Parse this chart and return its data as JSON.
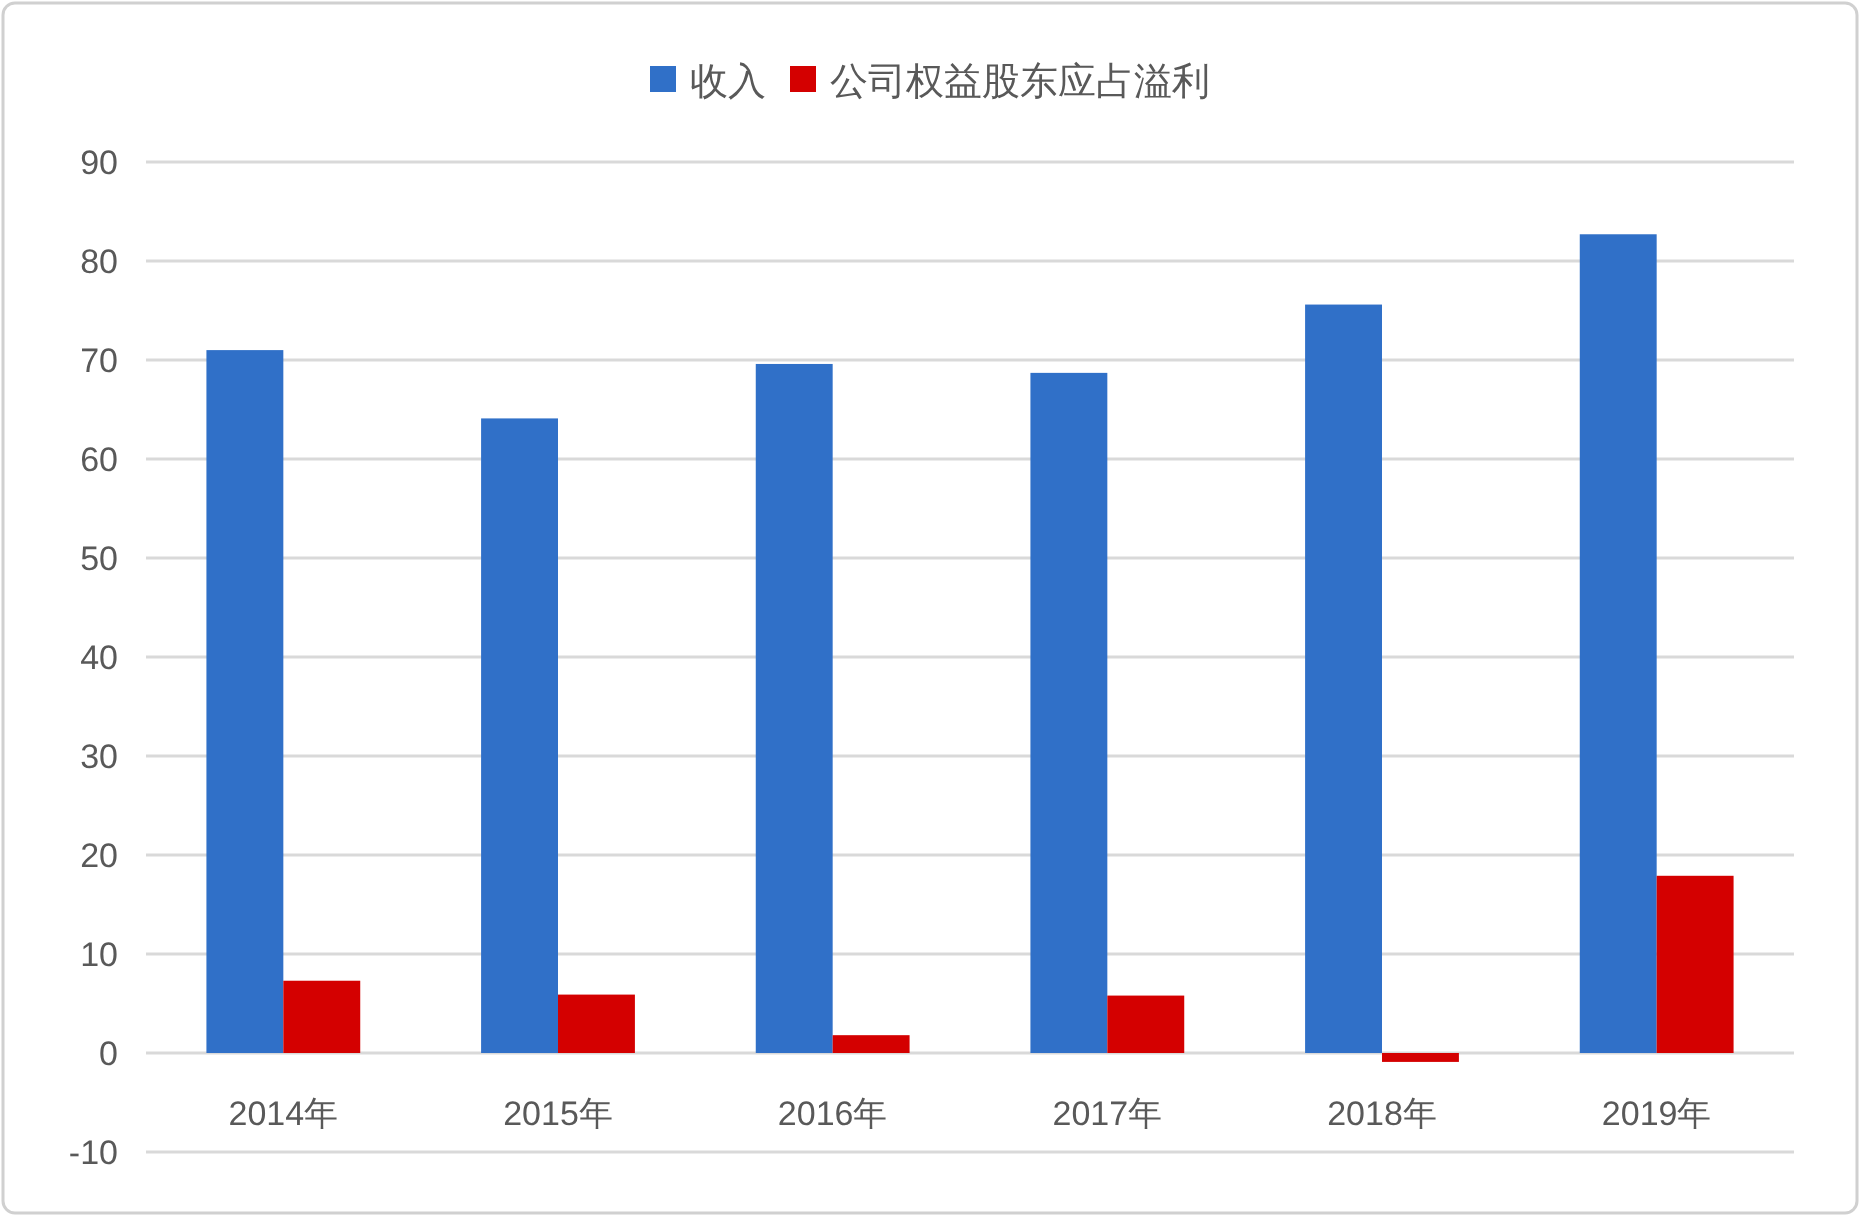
{
  "chart_data": {
    "type": "bar",
    "categories": [
      "2014年",
      "2015年",
      "2016年",
      "2017年",
      "2018年",
      "2019年"
    ],
    "series": [
      {
        "name": "收入",
        "color": "#3070c8",
        "values": [
          71.0,
          64.1,
          69.6,
          68.7,
          75.6,
          82.7
        ]
      },
      {
        "name": "公司权益股东应占溢利",
        "color": "#d40000",
        "values": [
          7.3,
          5.9,
          1.8,
          5.8,
          -0.9,
          17.9
        ]
      }
    ],
    "ylim": [
      -10,
      90
    ],
    "yticks": [
      -10,
      0,
      10,
      20,
      30,
      40,
      50,
      60,
      70,
      80,
      90
    ],
    "grid": "y",
    "legend": "top"
  }
}
